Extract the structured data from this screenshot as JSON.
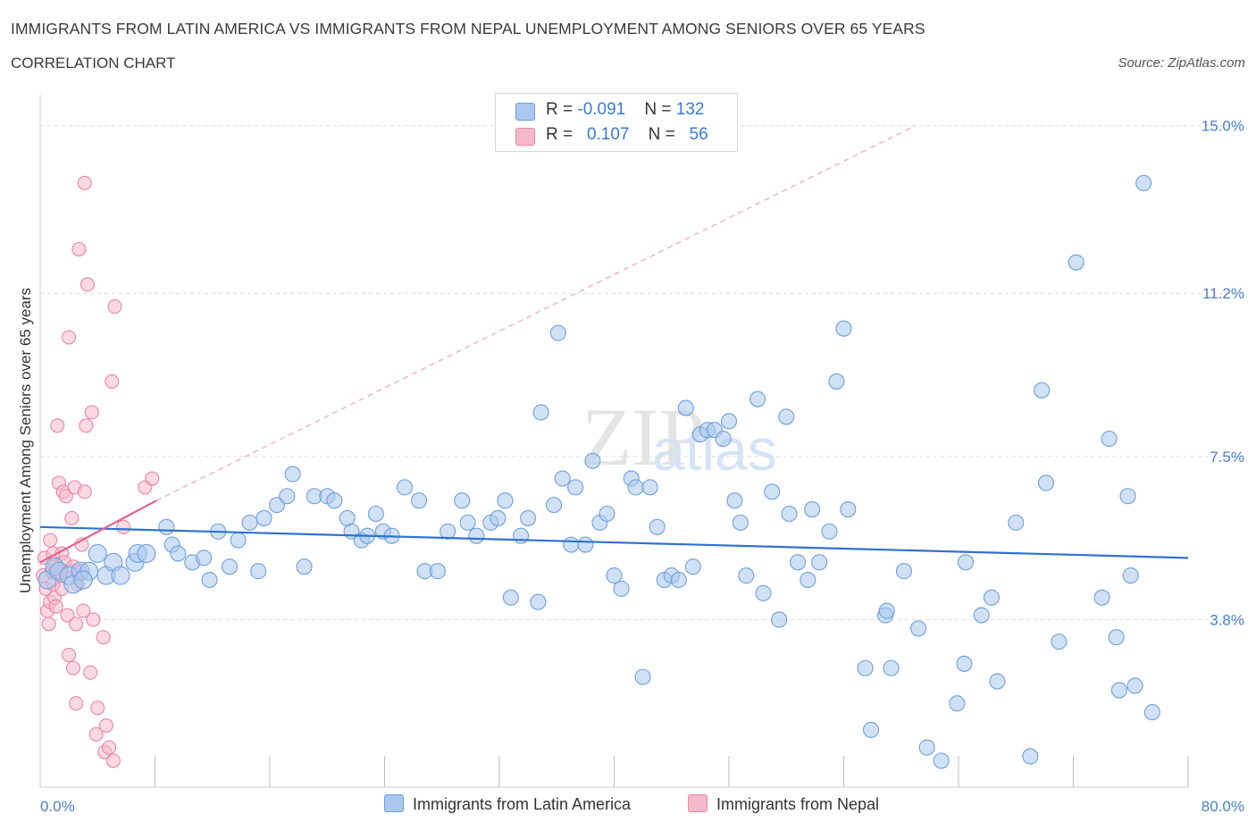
{
  "header": {
    "title": "IMMIGRANTS FROM LATIN AMERICA VS IMMIGRANTS FROM NEPAL UNEMPLOYMENT AMONG SENIORS OVER 65 YEARS",
    "subtitle": "CORRELATION CHART",
    "source": "Source: ZipAtlas.com"
  },
  "legend": {
    "rows": [
      {
        "r_label": "R = ",
        "r_value": "-0.091",
        "n_label": "N = ",
        "n_value": "132"
      },
      {
        "r_label": "R = ",
        "r_value": "0.107",
        "n_label": "N = ",
        "n_value": "56"
      }
    ],
    "bottom": [
      "Immigrants from Latin America",
      "Immigrants from Nepal"
    ]
  },
  "colors": {
    "blue_fill": "#aac8ef",
    "blue_stroke": "#6e9fdc",
    "blue_line": "#2f72cf",
    "pink_fill": "#f6b9c9",
    "pink_stroke": "#e987a3",
    "pink_line": "#e8608a",
    "grid": "#dcdcdc",
    "tick_text": "#4a7fcc"
  },
  "chart_data": {
    "type": "scatter",
    "title": "IMMIGRANTS FROM LATIN AMERICA VS IMMIGRANTS FROM NEPAL UNEMPLOYMENT AMONG SENIORS OVER 65 YEARS",
    "ylabel": "Unemployment Among Seniors over 65 years",
    "xlabel": "",
    "x_range": [
      0,
      80
    ],
    "y_range": [
      0,
      15.5
    ],
    "x_tick_labels": [
      "0.0%",
      "80.0%"
    ],
    "y_ticks": [
      3.8,
      7.5,
      11.2,
      15.0
    ],
    "y_tick_labels": [
      "3.8%",
      "7.5%",
      "11.2%",
      "15.0%"
    ],
    "grid": true,
    "legend_position": "top-center",
    "watermark": "ZIPatlas",
    "series": [
      {
        "name": "Immigrants from Latin America",
        "R": -0.091,
        "N": 132,
        "trend": {
          "x": [
            0,
            80
          ],
          "y": [
            5.9,
            5.2
          ]
        },
        "points": [
          [
            0.5,
            4.7
          ],
          [
            1,
            5.0
          ],
          [
            1.3,
            4.9
          ],
          [
            2,
            4.8
          ],
          [
            2.3,
            4.6
          ],
          [
            2.8,
            4.9
          ],
          [
            3.4,
            4.9
          ],
          [
            4,
            5.3
          ],
          [
            4.6,
            4.8
          ],
          [
            5.1,
            5.1
          ],
          [
            5.6,
            4.8
          ],
          [
            6.6,
            5.1
          ],
          [
            6.8,
            5.3
          ],
          [
            7.4,
            5.3
          ],
          [
            8.8,
            5.9
          ],
          [
            9.2,
            5.5
          ],
          [
            9.6,
            5.3
          ],
          [
            10.6,
            5.1
          ],
          [
            11.4,
            5.2
          ],
          [
            11.8,
            4.7
          ],
          [
            12.4,
            5.8
          ],
          [
            13.2,
            5.0
          ],
          [
            13.8,
            5.6
          ],
          [
            14.6,
            6.0
          ],
          [
            15.2,
            4.9
          ],
          [
            15.6,
            6.1
          ],
          [
            16.5,
            6.4
          ],
          [
            17.2,
            6.6
          ],
          [
            17.6,
            7.1
          ],
          [
            18.4,
            5.0
          ],
          [
            19.1,
            6.6
          ],
          [
            20,
            6.6
          ],
          [
            20.5,
            6.5
          ],
          [
            21.4,
            6.1
          ],
          [
            21.7,
            5.8
          ],
          [
            22.4,
            5.6
          ],
          [
            22.8,
            5.7
          ],
          [
            23.4,
            6.2
          ],
          [
            23.9,
            5.8
          ],
          [
            24.5,
            5.7
          ],
          [
            25.4,
            6.8
          ],
          [
            26.4,
            6.5
          ],
          [
            26.8,
            4.9
          ],
          [
            27.7,
            4.9
          ],
          [
            28.4,
            5.8
          ],
          [
            29.4,
            6.5
          ],
          [
            29.8,
            6.0
          ],
          [
            30.4,
            5.7
          ],
          [
            31.4,
            6.0
          ],
          [
            31.9,
            6.1
          ],
          [
            32.4,
            6.5
          ],
          [
            32.8,
            4.3
          ],
          [
            33.5,
            5.7
          ],
          [
            34.0,
            6.1
          ],
          [
            34.7,
            4.2
          ],
          [
            34.9,
            8.5
          ],
          [
            35.8,
            6.4
          ],
          [
            36.1,
            10.3
          ],
          [
            36.4,
            7.0
          ],
          [
            37.0,
            5.5
          ],
          [
            37.3,
            6.8
          ],
          [
            38.0,
            5.5
          ],
          [
            38.5,
            7.4
          ],
          [
            39.0,
            6.0
          ],
          [
            39.5,
            6.2
          ],
          [
            40.0,
            4.8
          ],
          [
            40.5,
            4.5
          ],
          [
            41.2,
            7.0
          ],
          [
            41.5,
            6.8
          ],
          [
            42.0,
            2.5
          ],
          [
            42.5,
            6.8
          ],
          [
            43.0,
            5.9
          ],
          [
            43.5,
            4.7
          ],
          [
            44.0,
            4.8
          ],
          [
            44.5,
            4.7
          ],
          [
            45.0,
            8.6
          ],
          [
            45.5,
            5.0
          ],
          [
            46.0,
            8.0
          ],
          [
            46.5,
            8.1
          ],
          [
            47.0,
            8.1
          ],
          [
            47.6,
            7.9
          ],
          [
            48.0,
            8.3
          ],
          [
            48.4,
            6.5
          ],
          [
            48.8,
            6.0
          ],
          [
            49.2,
            4.8
          ],
          [
            50.0,
            8.8
          ],
          [
            50.4,
            4.4
          ],
          [
            51.0,
            6.7
          ],
          [
            51.5,
            3.8
          ],
          [
            52.0,
            8.4
          ],
          [
            52.2,
            6.2
          ],
          [
            52.8,
            5.1
          ],
          [
            53.5,
            4.7
          ],
          [
            53.8,
            6.3
          ],
          [
            54.3,
            5.1
          ],
          [
            55.0,
            5.8
          ],
          [
            55.5,
            9.2
          ],
          [
            56.0,
            10.4
          ],
          [
            56.3,
            6.3
          ],
          [
            57.5,
            2.7
          ],
          [
            57.9,
            1.3
          ],
          [
            58.9,
            3.9
          ],
          [
            59.0,
            4.0
          ],
          [
            59.3,
            2.7
          ],
          [
            60.2,
            4.9
          ],
          [
            61.2,
            3.6
          ],
          [
            61.8,
            0.9
          ],
          [
            62.8,
            0.6
          ],
          [
            63.9,
            1.9
          ],
          [
            64.4,
            2.8
          ],
          [
            64.5,
            5.1
          ],
          [
            65.6,
            3.9
          ],
          [
            66.3,
            4.3
          ],
          [
            66.7,
            2.4
          ],
          [
            68.0,
            6.0
          ],
          [
            69.0,
            0.7
          ],
          [
            69.8,
            9.0
          ],
          [
            70.1,
            6.9
          ],
          [
            71.0,
            3.3
          ],
          [
            72.2,
            11.9
          ],
          [
            74.0,
            4.3
          ],
          [
            74.5,
            7.9
          ],
          [
            75.0,
            3.4
          ],
          [
            75.2,
            2.2
          ],
          [
            75.8,
            6.6
          ],
          [
            76.3,
            2.3
          ],
          [
            76.9,
            13.7
          ],
          [
            76.0,
            4.8
          ],
          [
            77.5,
            1.7
          ],
          [
            3.0,
            4.7
          ]
        ]
      },
      {
        "name": "Immigrants from Nepal",
        "R": 0.107,
        "N": 56,
        "trend": {
          "x": [
            0,
            8.1
          ],
          "y": [
            5.1,
            6.5
          ]
        },
        "trend_extension": {
          "x": [
            8.1,
            61.0
          ],
          "y": [
            6.5,
            15.0
          ]
        },
        "points": [
          [
            0.2,
            4.8
          ],
          [
            0.3,
            5.2
          ],
          [
            0.4,
            4.5
          ],
          [
            0.5,
            4.0
          ],
          [
            0.6,
            3.7
          ],
          [
            0.7,
            5.6
          ],
          [
            0.7,
            4.2
          ],
          [
            0.8,
            4.9
          ],
          [
            0.9,
            4.6
          ],
          [
            1.0,
            5.0
          ],
          [
            1.0,
            4.3
          ],
          [
            1.1,
            4.1
          ],
          [
            1.2,
            8.2
          ],
          [
            1.3,
            6.9
          ],
          [
            1.4,
            4.8
          ],
          [
            1.5,
            4.5
          ],
          [
            1.5,
            5.3
          ],
          [
            1.6,
            6.7
          ],
          [
            1.7,
            5.1
          ],
          [
            1.8,
            6.6
          ],
          [
            1.9,
            3.9
          ],
          [
            2.0,
            10.2
          ],
          [
            2.0,
            3.0
          ],
          [
            2.1,
            4.9
          ],
          [
            2.2,
            6.1
          ],
          [
            2.3,
            2.7
          ],
          [
            2.3,
            5.0
          ],
          [
            2.4,
            6.8
          ],
          [
            2.5,
            1.9
          ],
          [
            2.5,
            3.7
          ],
          [
            2.6,
            4.6
          ],
          [
            2.7,
            12.2
          ],
          [
            2.8,
            4.9
          ],
          [
            2.9,
            5.5
          ],
          [
            3.0,
            4.0
          ],
          [
            3.1,
            13.7
          ],
          [
            3.1,
            6.7
          ],
          [
            3.2,
            8.2
          ],
          [
            3.3,
            11.4
          ],
          [
            3.5,
            2.6
          ],
          [
            3.6,
            8.5
          ],
          [
            3.7,
            3.8
          ],
          [
            3.9,
            1.2
          ],
          [
            4.0,
            1.8
          ],
          [
            4.4,
            3.4
          ],
          [
            4.5,
            0.8
          ],
          [
            4.6,
            1.4
          ],
          [
            4.8,
            0.9
          ],
          [
            5.0,
            9.2
          ],
          [
            5.1,
            0.6
          ],
          [
            5.2,
            10.9
          ],
          [
            5.8,
            5.9
          ],
          [
            7.3,
            6.8
          ],
          [
            7.8,
            7.0
          ],
          [
            1.3,
            4.9
          ],
          [
            0.9,
            5.3
          ]
        ]
      }
    ]
  }
}
